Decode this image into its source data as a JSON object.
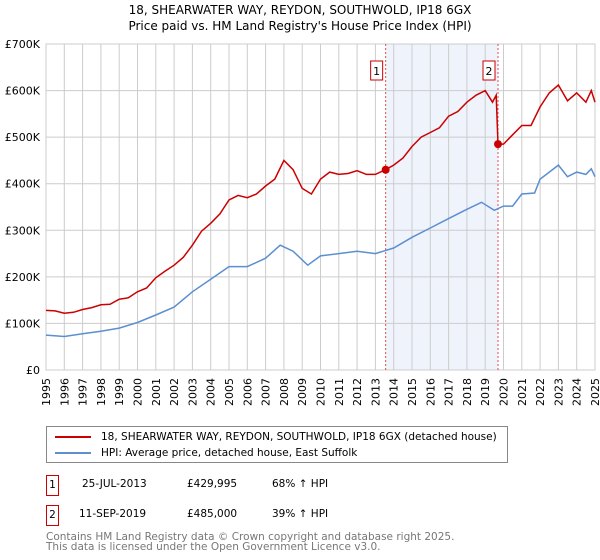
{
  "chart_data": {
    "type": "line",
    "title": "18, SHEARWATER WAY, REYDON, SOUTHWOLD, IP18 6GX",
    "subtitle": "Price paid vs. HM Land Registry's House Price Index (HPI)",
    "xlim": [
      1995,
      2025
    ],
    "ylim": [
      0,
      700000
    ],
    "y_ticks": [
      {
        "v": 0,
        "label": "£0"
      },
      {
        "v": 100000,
        "label": "£100K"
      },
      {
        "v": 200000,
        "label": "£200K"
      },
      {
        "v": 300000,
        "label": "£300K"
      },
      {
        "v": 400000,
        "label": "£400K"
      },
      {
        "v": 500000,
        "label": "£500K"
      },
      {
        "v": 600000,
        "label": "£600K"
      },
      {
        "v": 700000,
        "label": "£700K"
      }
    ],
    "x_ticks": [
      "1995",
      "1996",
      "1997",
      "1998",
      "1999",
      "2000",
      "2001",
      "2002",
      "2003",
      "2004",
      "2005",
      "2006",
      "2007",
      "2008",
      "2009",
      "2010",
      "2011",
      "2012",
      "2013",
      "2014",
      "2015",
      "2016",
      "2017",
      "2018",
      "2019",
      "2020",
      "2021",
      "2022",
      "2023",
      "2024",
      "2025"
    ],
    "grid": true,
    "series": [
      {
        "name": "18, SHEARWATER WAY, REYDON, SOUTHWOLD, IP18 6GX (detached house)",
        "color": "#cc0000",
        "x": [
          1995,
          1995.5,
          1996,
          1996.5,
          1997,
          1997.5,
          1998,
          1998.5,
          1999,
          1999.5,
          2000,
          2000.5,
          2001,
          2001.5,
          2002,
          2002.5,
          2003,
          2003.5,
          2004,
          2004.5,
          2005,
          2005.5,
          2006,
          2006.5,
          2007,
          2007.5,
          2008,
          2008.5,
          2009,
          2009.5,
          2010,
          2010.5,
          2011,
          2011.5,
          2012,
          2012.5,
          2013,
          2013.56,
          2014,
          2014.5,
          2015,
          2015.5,
          2016,
          2016.5,
          2017,
          2017.5,
          2018,
          2018.5,
          2019,
          2019.4,
          2019.6,
          2019.7,
          2020,
          2020.5,
          2021,
          2021.5,
          2022,
          2022.5,
          2023,
          2023.5,
          2024,
          2024.5,
          2024.8,
          2025
        ],
        "y": [
          128000,
          127000,
          122000,
          124000,
          130000,
          134000,
          140000,
          141000,
          152000,
          155000,
          168000,
          176000,
          198000,
          212000,
          225000,
          242000,
          268000,
          298000,
          315000,
          335000,
          365000,
          375000,
          370000,
          378000,
          395000,
          410000,
          450000,
          430000,
          390000,
          378000,
          410000,
          425000,
          420000,
          422000,
          428000,
          420000,
          420000,
          429995,
          440000,
          455000,
          480000,
          500000,
          510000,
          520000,
          545000,
          555000,
          575000,
          590000,
          600000,
          575000,
          590000,
          485000,
          485000,
          505000,
          525000,
          525000,
          565000,
          595000,
          612000,
          578000,
          595000,
          575000,
          600000,
          575000
        ]
      },
      {
        "name": "HPI: Average price, detached house, East Suffolk",
        "color": "#5b8fd0",
        "x": [
          1995,
          1996,
          1997,
          1998,
          1999,
          2000,
          2001,
          2002,
          2003,
          2004,
          2005,
          2006,
          2007,
          2007.8,
          2008.5,
          2009.3,
          2010,
          2011,
          2012,
          2013,
          2014,
          2015,
          2016,
          2017,
          2018,
          2018.8,
          2019.5,
          2020,
          2020.5,
          2021,
          2021.7,
          2022,
          2022.5,
          2023,
          2023.5,
          2024,
          2024.5,
          2024.8,
          2025
        ],
        "y": [
          75000,
          72000,
          78000,
          83000,
          90000,
          102000,
          118000,
          135000,
          168000,
          195000,
          222000,
          222000,
          240000,
          268000,
          255000,
          225000,
          245000,
          250000,
          255000,
          250000,
          262000,
          285000,
          305000,
          325000,
          345000,
          360000,
          343000,
          352000,
          352000,
          378000,
          380000,
          410000,
          425000,
          440000,
          415000,
          425000,
          420000,
          432000,
          415000
        ]
      }
    ],
    "annotations": [
      {
        "label": "1",
        "x": 2013.56,
        "y": 429995
      },
      {
        "label": "2",
        "x": 2019.7,
        "y": 485000
      }
    ],
    "shaded_range": [
      2013.56,
      2019.7
    ],
    "legend_position": "bottom"
  },
  "transactions": [
    {
      "num": "1",
      "date": "25-JUL-2013",
      "price": "£429,995",
      "hpi": "68% ↑ HPI"
    },
    {
      "num": "2",
      "date": "11-SEP-2019",
      "price": "£485,000",
      "hpi": "39% ↑ HPI"
    }
  ],
  "footer": [
    "Contains HM Land Registry data © Crown copyright and database right 2025.",
    "This data is licensed under the Open Government Licence v3.0."
  ]
}
